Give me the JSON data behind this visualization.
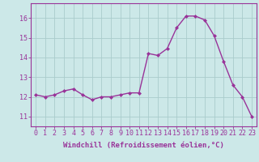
{
  "x": [
    0,
    1,
    2,
    3,
    4,
    5,
    6,
    7,
    8,
    9,
    10,
    11,
    12,
    13,
    14,
    15,
    16,
    17,
    18,
    19,
    20,
    21,
    22,
    23
  ],
  "y": [
    12.1,
    12.0,
    12.1,
    12.3,
    12.4,
    12.1,
    11.85,
    12.0,
    12.0,
    12.1,
    12.2,
    12.2,
    14.2,
    14.1,
    14.45,
    15.5,
    16.1,
    16.1,
    15.9,
    15.1,
    13.8,
    12.6,
    12.0,
    11.0
  ],
  "line_color": "#993399",
  "marker": "D",
  "marker_size": 2.0,
  "bg_color": "#cce8e8",
  "grid_color": "#aacccc",
  "xlabel": "Windchill (Refroidissement éolien,°C)",
  "ylabel": "",
  "ylim": [
    10.5,
    16.75
  ],
  "xlim": [
    -0.5,
    23.5
  ],
  "yticks": [
    11,
    12,
    13,
    14,
    15,
    16
  ],
  "xticks": [
    0,
    1,
    2,
    3,
    4,
    5,
    6,
    7,
    8,
    9,
    10,
    11,
    12,
    13,
    14,
    15,
    16,
    17,
    18,
    19,
    20,
    21,
    22,
    23
  ],
  "tick_color": "#993399",
  "label_fontsize": 6.5,
  "tick_fontsize": 6.0,
  "spine_color": "#993399",
  "line_width": 1.0
}
